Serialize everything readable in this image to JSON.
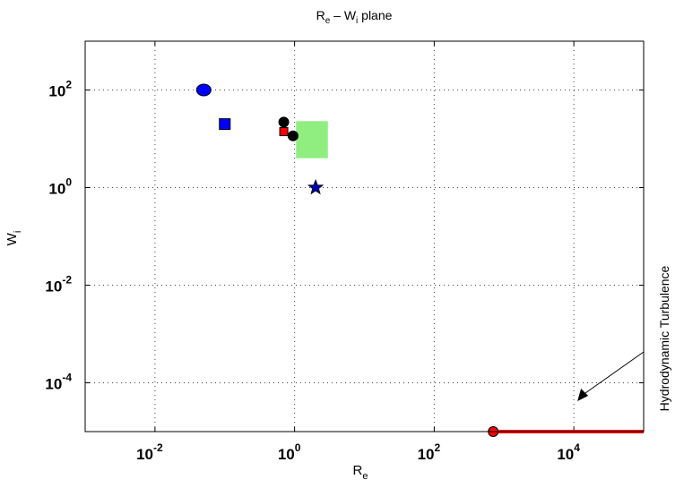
{
  "chart_data": {
    "type": "scatter",
    "title": {
      "main": "R",
      "sub1": "e",
      "mid": " – W",
      "sub2": "i",
      "tail": " plane"
    },
    "xlabel": {
      "main": "R",
      "sub": "e"
    },
    "ylabel": {
      "main": "W",
      "sub": "i"
    },
    "xscale": "log",
    "yscale": "log",
    "xlim": [
      0.001,
      100000
    ],
    "ylim": [
      1e-05,
      1000
    ],
    "grid": true,
    "x_ticks": [
      {
        "base": "10",
        "exp": "-2",
        "value": 0.01
      },
      {
        "base": "10",
        "exp": "0",
        "value": 1
      },
      {
        "base": "10",
        "exp": "2",
        "value": 100
      },
      {
        "base": "10",
        "exp": "4",
        "value": 10000
      }
    ],
    "y_ticks": [
      {
        "base": "10",
        "exp": "2",
        "value": 100
      },
      {
        "base": "10",
        "exp": "0",
        "value": 1
      },
      {
        "base": "10",
        "exp": "-2",
        "value": 0.01
      },
      {
        "base": "10",
        "exp": "-4",
        "value": 0.0001
      }
    ],
    "points": [
      {
        "shape": "ellipse",
        "x": 0.05,
        "y": 100,
        "color": "#0000ff"
      },
      {
        "shape": "square",
        "x": 0.1,
        "y": 20,
        "color": "#0000ff"
      },
      {
        "shape": "circle",
        "x": 0.7,
        "y": 22,
        "color": "#000000"
      },
      {
        "shape": "circle",
        "x": 0.95,
        "y": 11.5,
        "color": "#000000"
      },
      {
        "shape": "square",
        "x": 0.7,
        "y": 14,
        "color": "#ff0000"
      },
      {
        "shape": "star",
        "x": 2,
        "y": 1,
        "color": "#0000aa"
      },
      {
        "shape": "circle",
        "x": 700,
        "y": 1e-05,
        "color": "#ff0000"
      }
    ],
    "regions": [
      {
        "shape": "rect",
        "x": [
          1.05,
          3
        ],
        "y": [
          4,
          23
        ],
        "color": "#90ee80"
      }
    ],
    "lines": [
      {
        "x": [
          700,
          100000
        ],
        "y": [
          1e-05,
          1e-05
        ],
        "color": "#ff0000"
      }
    ],
    "annotation": {
      "text": "Hydrodynamic Turbulence",
      "arrow_to": [
        10000,
        3e-05
      ]
    }
  }
}
